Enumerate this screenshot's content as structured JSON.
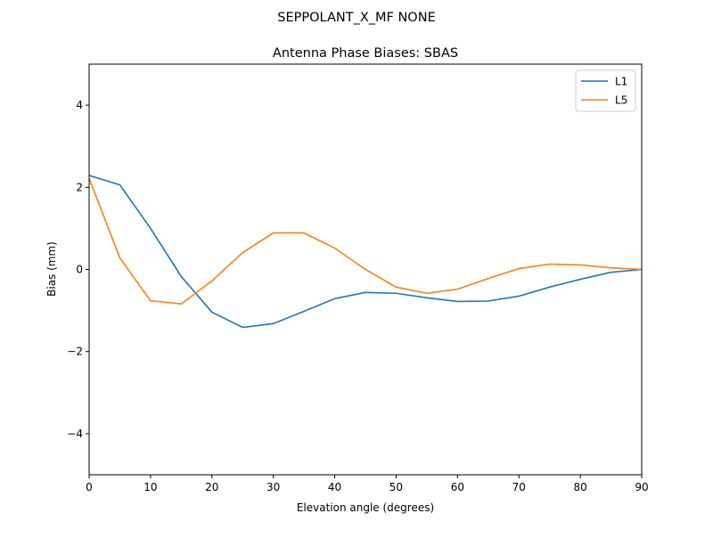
{
  "chart_data": {
    "type": "line",
    "suptitle": "SEPPOLANT_X_MF  NONE",
    "title": "Antenna Phase Biases: SBAS",
    "xlabel": "Elevation angle (degrees)",
    "ylabel": "Bias (mm)",
    "xlim": [
      0,
      90
    ],
    "ylim": [
      -5,
      5
    ],
    "xticks": [
      0,
      10,
      20,
      30,
      40,
      50,
      60,
      70,
      80,
      90
    ],
    "yticks": [
      -4,
      -2,
      0,
      2,
      4
    ],
    "ytick_labels": [
      "−4",
      "−2",
      "0",
      "2",
      "4"
    ],
    "grid": false,
    "legend_position": "top-right",
    "x": [
      0,
      5,
      10,
      15,
      20,
      25,
      30,
      35,
      40,
      45,
      50,
      55,
      60,
      65,
      70,
      75,
      80,
      85,
      90
    ],
    "series": [
      {
        "name": "L1",
        "color": "#1f77b4",
        "values": [
          2.29,
          2.06,
          1.0,
          -0.17,
          -1.04,
          -1.41,
          -1.32,
          -1.02,
          -0.71,
          -0.56,
          -0.58,
          -0.69,
          -0.78,
          -0.77,
          -0.65,
          -0.43,
          -0.24,
          -0.07,
          0.0
        ]
      },
      {
        "name": "L5",
        "color": "#ff7f0e",
        "values": [
          2.22,
          0.28,
          -0.76,
          -0.84,
          -0.28,
          0.41,
          0.89,
          0.89,
          0.52,
          0.0,
          -0.43,
          -0.58,
          -0.48,
          -0.22,
          0.02,
          0.13,
          0.11,
          0.04,
          0.0
        ]
      }
    ]
  }
}
